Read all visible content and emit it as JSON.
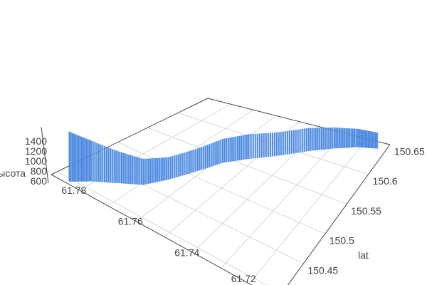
{
  "chart_data": {
    "type": "scatter3d",
    "x_axis": {
      "title": "",
      "ticks": [
        "61.78",
        "61.76",
        "61.74",
        "61.72"
      ],
      "range": [
        61.71,
        61.79
      ]
    },
    "y_axis": {
      "title": "lat",
      "ticks": [
        "150.45",
        "150.5",
        "150.55",
        "150.6",
        "150.65"
      ],
      "range": [
        150.4,
        150.66
      ]
    },
    "z_axis": {
      "title": "высота",
      "ticks": [
        "600",
        "800",
        "1000",
        "1200",
        "1400"
      ],
      "range": [
        600,
        1400
      ]
    },
    "grid": true,
    "color": "#3b7ddd",
    "points": [
      {
        "x": 61.788,
        "y": 150.421,
        "z": 1450
      },
      {
        "x": 61.784,
        "y": 150.439,
        "z": 1300
      },
      {
        "x": 61.778,
        "y": 150.457,
        "z": 1150
      },
      {
        "x": 61.772,
        "y": 150.473,
        "z": 1050
      },
      {
        "x": 61.768,
        "y": 150.499,
        "z": 1000
      },
      {
        "x": 61.764,
        "y": 150.53,
        "z": 1050
      },
      {
        "x": 61.76,
        "y": 150.561,
        "z": 1150
      },
      {
        "x": 61.754,
        "y": 150.582,
        "z": 1250
      },
      {
        "x": 61.746,
        "y": 150.603,
        "z": 1300
      },
      {
        "x": 61.738,
        "y": 150.624,
        "z": 1400
      },
      {
        "x": 61.73,
        "y": 150.639,
        "z": 1420
      },
      {
        "x": 61.722,
        "y": 150.65,
        "z": 1400
      },
      {
        "x": 61.714,
        "y": 150.655,
        "z": 1380
      }
    ]
  }
}
